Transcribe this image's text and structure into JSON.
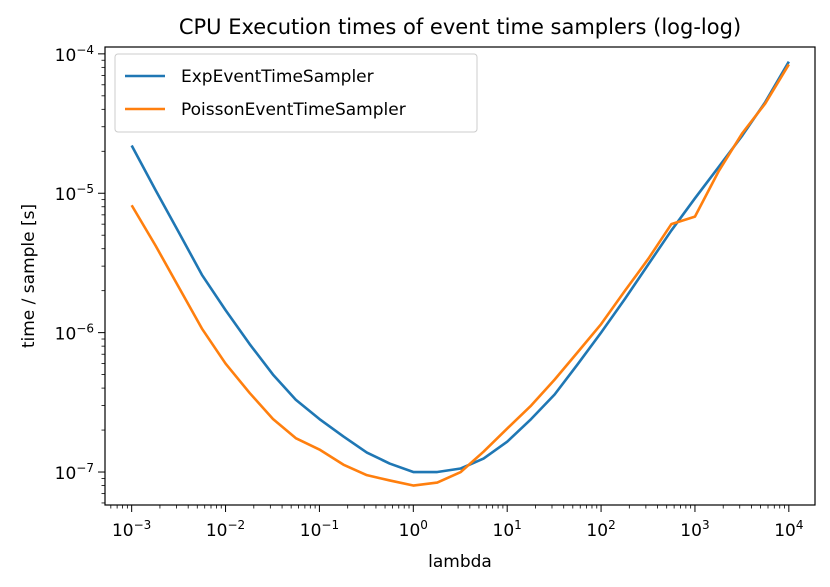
{
  "chart_data": {
    "type": "line",
    "title": "CPU Execution times of event time samplers (log-log)",
    "xlabel": "lambda",
    "ylabel": "time / sample [s]",
    "xscale": "log",
    "yscale": "log",
    "xlim": [
      0.00052,
      19000
    ],
    "ylim": [
      5.8e-08,
      0.000112
    ],
    "grid": false,
    "legend_position": "upper-left",
    "xticks": [
      {
        "value": 0.001,
        "base": "10",
        "exp": "−3"
      },
      {
        "value": 0.01,
        "base": "10",
        "exp": "−2"
      },
      {
        "value": 0.1,
        "base": "10",
        "exp": "−1"
      },
      {
        "value": 1,
        "base": "10",
        "exp": "0"
      },
      {
        "value": 10,
        "base": "10",
        "exp": "1"
      },
      {
        "value": 100,
        "base": "10",
        "exp": "2"
      },
      {
        "value": 1000,
        "base": "10",
        "exp": "3"
      },
      {
        "value": 10000,
        "base": "10",
        "exp": "4"
      }
    ],
    "yticks": [
      {
        "value": 1e-07,
        "base": "10",
        "exp": "−7"
      },
      {
        "value": 1e-06,
        "base": "10",
        "exp": "−6"
      },
      {
        "value": 1e-05,
        "base": "10",
        "exp": "−5"
      },
      {
        "value": 0.0001,
        "base": "10",
        "exp": "−4"
      }
    ],
    "series": [
      {
        "name": "ExpEventTimeSampler",
        "color": "#1f77b4",
        "points": [
          [
            0.001,
            2.2e-05
          ],
          [
            0.0018,
            1.05e-05
          ],
          [
            0.0032,
            5.2e-06
          ],
          [
            0.0056,
            2.6e-06
          ],
          [
            0.01,
            1.45e-06
          ],
          [
            0.018,
            8.3e-07
          ],
          [
            0.032,
            5e-07
          ],
          [
            0.056,
            3.3e-07
          ],
          [
            0.1,
            2.4e-07
          ],
          [
            0.18,
            1.8e-07
          ],
          [
            0.32,
            1.38e-07
          ],
          [
            0.56,
            1.15e-07
          ],
          [
            1.0,
            1e-07
          ],
          [
            1.8,
            1e-07
          ],
          [
            3.2,
            1.06e-07
          ],
          [
            5.6,
            1.25e-07
          ],
          [
            10,
            1.65e-07
          ],
          [
            18,
            2.4e-07
          ],
          [
            32,
            3.6e-07
          ],
          [
            56,
            5.9e-07
          ],
          [
            100,
            1e-06
          ],
          [
            180,
            1.75e-06
          ],
          [
            320,
            3.1e-06
          ],
          [
            560,
            5.4e-06
          ],
          [
            1000,
            9.2e-06
          ],
          [
            1800,
            1.55e-05
          ],
          [
            3200,
            2.6e-05
          ],
          [
            5600,
            4.5e-05
          ],
          [
            10000,
            8.8e-05
          ]
        ]
      },
      {
        "name": "PoissonEventTimeSampler",
        "color": "#ff7f0e",
        "points": [
          [
            0.001,
            8.2e-06
          ],
          [
            0.0018,
            4.2e-06
          ],
          [
            0.0032,
            2.1e-06
          ],
          [
            0.0056,
            1.07e-06
          ],
          [
            0.01,
            6e-07
          ],
          [
            0.018,
            3.7e-07
          ],
          [
            0.032,
            2.4e-07
          ],
          [
            0.056,
            1.75e-07
          ],
          [
            0.1,
            1.45e-07
          ],
          [
            0.18,
            1.13e-07
          ],
          [
            0.32,
            9.5e-08
          ],
          [
            0.56,
            8.7e-08
          ],
          [
            1.0,
            8e-08
          ],
          [
            1.8,
            8.4e-08
          ],
          [
            3.2,
            1e-07
          ],
          [
            5.6,
            1.4e-07
          ],
          [
            10,
            2.05e-07
          ],
          [
            18,
            3e-07
          ],
          [
            32,
            4.6e-07
          ],
          [
            56,
            7.2e-07
          ],
          [
            100,
            1.15e-06
          ],
          [
            180,
            2e-06
          ],
          [
            320,
            3.4e-06
          ],
          [
            560,
            6e-06
          ],
          [
            1000,
            6.8e-06
          ],
          [
            1800,
            1.45e-05
          ],
          [
            3200,
            2.7e-05
          ],
          [
            5600,
            4.4e-05
          ],
          [
            10000,
            8.4e-05
          ]
        ]
      }
    ]
  }
}
